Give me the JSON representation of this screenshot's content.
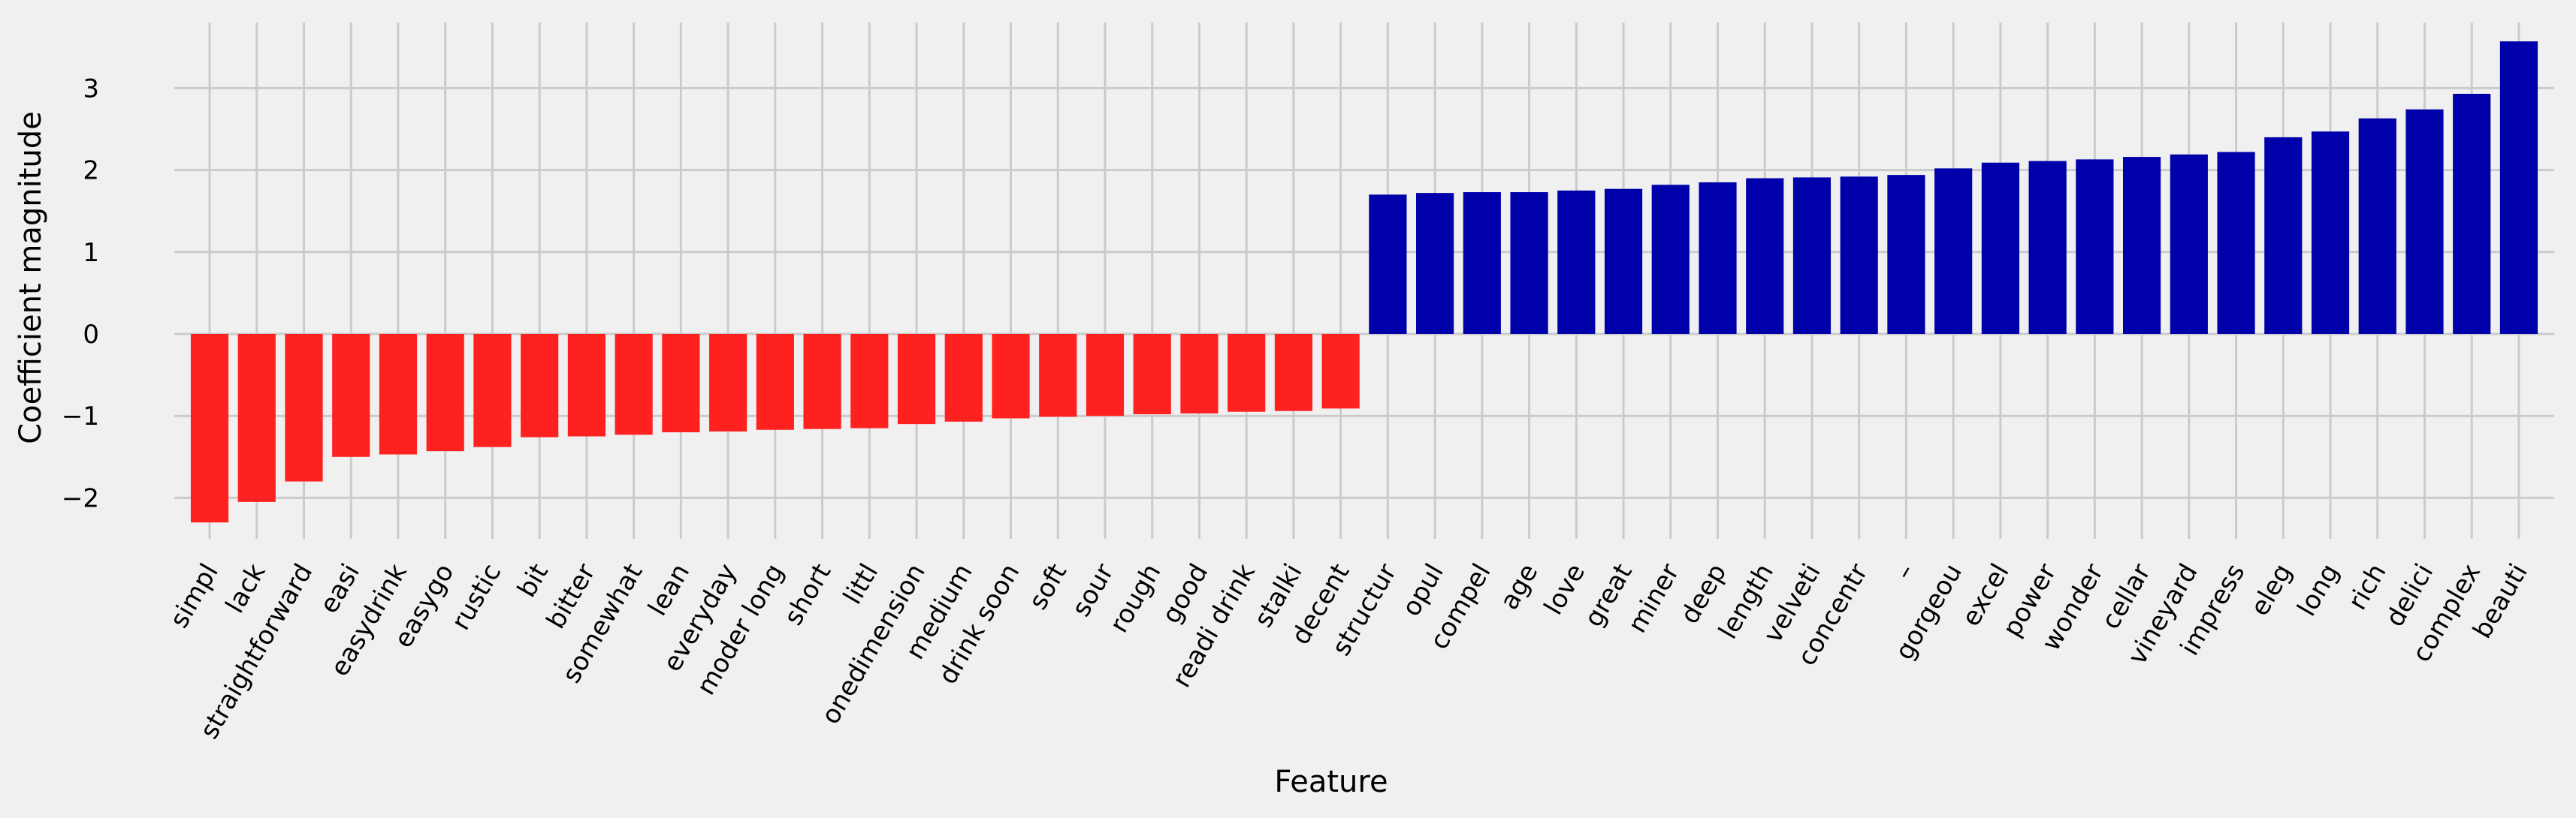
{
  "chart_data": {
    "type": "bar",
    "title": "",
    "xlabel": "Feature",
    "ylabel": "Coefficient magnitude",
    "ylim": [
      -2.5,
      3.8
    ],
    "yticks": [
      -2,
      -1,
      0,
      1,
      2,
      3
    ],
    "ytick_labels": [
      "−2",
      "−1",
      "0",
      "1",
      "2",
      "3"
    ],
    "grid": true,
    "legend": "none",
    "categories": [
      "simpl",
      "lack",
      "straightforward",
      "easi",
      "easydrink",
      "easygo",
      "rustic",
      "bit",
      "bitter",
      "somewhat",
      "lean",
      "everyday",
      "moder long",
      "short",
      "littl",
      "onedimension",
      "medium",
      "drink soon",
      "soft",
      "sour",
      "rough",
      "good",
      "readi drink",
      "stalki",
      "decent",
      "structur",
      "opul",
      "compel",
      "age",
      "love",
      "great",
      "miner",
      "deep",
      "length",
      "velveti",
      "concentr",
      "–",
      "gorgeou",
      "excel",
      "power",
      "wonder",
      "cellar",
      "vineyard",
      "impress",
      "eleg",
      "long",
      "rich",
      "delici",
      "complex",
      "beauti"
    ],
    "values": [
      -2.3,
      -2.05,
      -1.8,
      -1.5,
      -1.47,
      -1.43,
      -1.38,
      -1.26,
      -1.25,
      -1.23,
      -1.2,
      -1.19,
      -1.17,
      -1.16,
      -1.15,
      -1.1,
      -1.07,
      -1.03,
      -1.01,
      -1.0,
      -0.98,
      -0.97,
      -0.95,
      -0.94,
      -0.91,
      1.7,
      1.72,
      1.73,
      1.73,
      1.75,
      1.77,
      1.82,
      1.85,
      1.9,
      1.91,
      1.92,
      1.94,
      2.02,
      2.09,
      2.11,
      2.13,
      2.16,
      2.19,
      2.22,
      2.4,
      2.47,
      2.63,
      2.74,
      2.93,
      3.57
    ],
    "colors": {
      "negative": "#ff2020",
      "positive": "#0000aa",
      "grid": "#cbcbcb",
      "background": "#f0f0f0"
    }
  }
}
